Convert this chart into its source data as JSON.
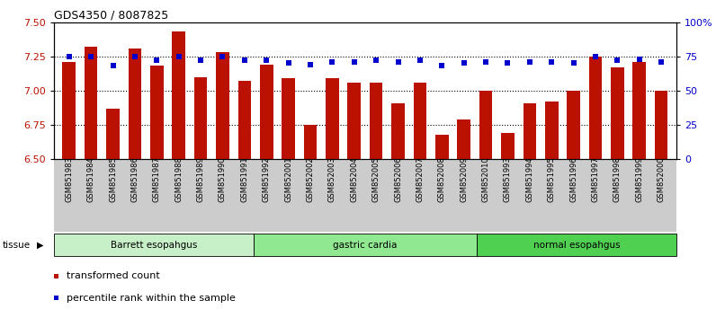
{
  "title": "GDS4350 / 8087825",
  "samples": [
    "GSM851983",
    "GSM851984",
    "GSM851985",
    "GSM851986",
    "GSM851987",
    "GSM851988",
    "GSM851989",
    "GSM851990",
    "GSM851991",
    "GSM851992",
    "GSM852001",
    "GSM852002",
    "GSM852003",
    "GSM852004",
    "GSM852005",
    "GSM852006",
    "GSM852007",
    "GSM852008",
    "GSM852009",
    "GSM852010",
    "GSM851993",
    "GSM851994",
    "GSM851995",
    "GSM851996",
    "GSM851997",
    "GSM851998",
    "GSM851999",
    "GSM852000"
  ],
  "bar_values": [
    7.21,
    7.32,
    6.87,
    7.31,
    7.18,
    7.43,
    7.1,
    7.28,
    7.07,
    7.19,
    7.09,
    6.75,
    7.09,
    7.06,
    7.06,
    6.91,
    7.06,
    6.68,
    6.79,
    7.0,
    6.69,
    6.91,
    6.92,
    7.0,
    7.25,
    7.17,
    7.21,
    7.0
  ],
  "percentile_values": [
    75,
    75,
    68,
    75,
    72,
    75,
    72,
    75,
    72,
    72,
    70,
    69,
    71,
    71,
    72,
    71,
    72,
    68,
    70,
    71,
    70,
    71,
    71,
    70,
    75,
    72,
    73,
    71
  ],
  "groups": [
    {
      "label": "Barrett esopahgus",
      "start": 0,
      "end": 9,
      "color": "#c8f0c8"
    },
    {
      "label": "gastric cardia",
      "start": 9,
      "end": 19,
      "color": "#90e890"
    },
    {
      "label": "normal esopahgus",
      "start": 19,
      "end": 28,
      "color": "#50d050"
    }
  ],
  "bar_color": "#bb1100",
  "dot_color": "#0000cc",
  "ylim_left": [
    6.5,
    7.5
  ],
  "ylim_right": [
    0,
    100
  ],
  "yticks_left": [
    6.5,
    6.75,
    7.0,
    7.25,
    7.5
  ],
  "yticks_right": [
    0,
    25,
    50,
    75,
    100
  ],
  "ytick_labels_right": [
    "0",
    "25",
    "50",
    "75",
    "100%"
  ],
  "grid_values": [
    6.75,
    7.0,
    7.25
  ],
  "legend_bar_label": "transformed count",
  "legend_dot_label": "percentile rank within the sample",
  "tissue_label": "tissue",
  "background_color": "#ffffff",
  "plot_bg_color": "#ffffff",
  "xticklabel_bg_color": "#cccccc"
}
